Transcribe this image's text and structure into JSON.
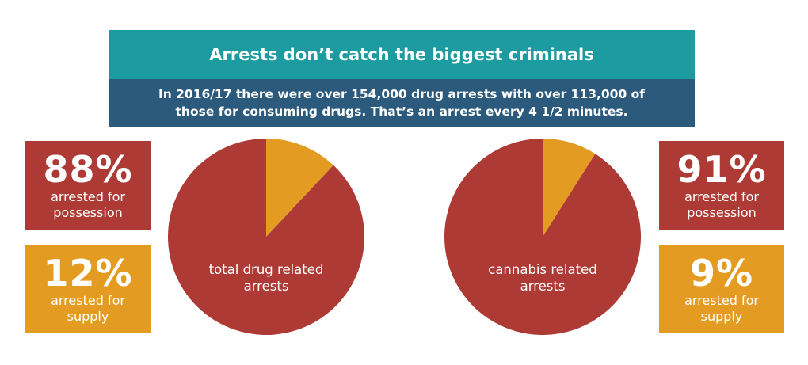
{
  "header": {
    "title": "Arrests don’t catch the biggest criminals",
    "subtitle_line1": "In 2016/17 there were over 154,000 drug arrests with over 113,000 of",
    "subtitle_line2": "those for consuming drugs. That’s an arrest every 4 1/2 minutes."
  },
  "stats": {
    "total_possession": {
      "percent": "88%",
      "line1": "arrested for",
      "line2": "possession"
    },
    "total_supply": {
      "percent": "12%",
      "line1": "arrested for",
      "line2": "supply"
    },
    "cannabis_possession": {
      "percent": "91%",
      "line1": "arrested for",
      "line2": "possession"
    },
    "cannabis_supply": {
      "percent": "9%",
      "line1": "arrested for",
      "line2": "supply"
    }
  },
  "colors": {
    "possession": "#ad3a34",
    "supply": "#e39c21",
    "title_bg": "#1c9ba0",
    "subtitle_bg": "#2b5a7d"
  },
  "chart_data": [
    {
      "type": "pie",
      "label_line1": "total drug related",
      "label_line2": "arrests",
      "slices": [
        {
          "name": "supply",
          "value": 12
        },
        {
          "name": "possession",
          "value": 88
        }
      ]
    },
    {
      "type": "pie",
      "label_line1": "cannabis related",
      "label_line2": "arrests",
      "slices": [
        {
          "name": "supply",
          "value": 9
        },
        {
          "name": "possession",
          "value": 91
        }
      ]
    }
  ]
}
